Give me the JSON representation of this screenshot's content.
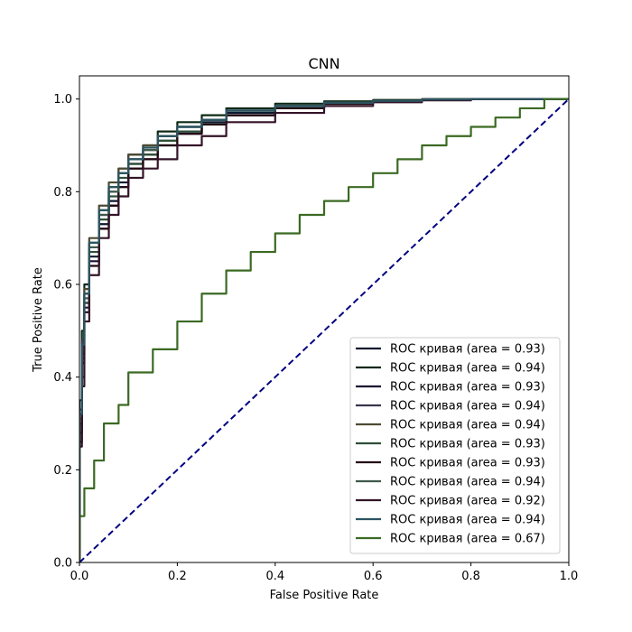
{
  "chart_data": {
    "type": "line",
    "title": "CNN",
    "xlabel": "False Positive Rate",
    "ylabel": "True Positive Rate",
    "xlim": [
      0.0,
      1.0
    ],
    "ylim": [
      0.0,
      1.05
    ],
    "xticks": [
      "0.0",
      "0.2",
      "0.4",
      "0.6",
      "0.8",
      "1.0"
    ],
    "yticks": [
      "0.0",
      "0.2",
      "0.4",
      "0.6",
      "0.8",
      "1.0"
    ],
    "grid": false,
    "legend_position": "lower-right",
    "diagonal": {
      "x": [
        0,
        1
      ],
      "y": [
        0,
        1
      ],
      "color": "#000080",
      "style": "dashed"
    },
    "series": [
      {
        "name": "ROC кривая (area = 0.93)",
        "color": "#0b1a2e",
        "x": [
          0,
          0.005,
          0.01,
          0.02,
          0.04,
          0.06,
          0.08,
          0.1,
          0.13,
          0.16,
          0.2,
          0.25,
          0.3,
          0.4,
          0.5,
          0.6,
          0.7,
          0.8,
          0.9,
          1.0
        ],
        "y": [
          0,
          0.3,
          0.45,
          0.56,
          0.66,
          0.73,
          0.78,
          0.82,
          0.86,
          0.88,
          0.91,
          0.93,
          0.95,
          0.97,
          0.98,
          0.99,
          0.995,
          0.998,
          1.0,
          1.0
        ]
      },
      {
        "name": "ROC кривая (area = 0.94)",
        "color": "#0e2a16",
        "x": [
          0,
          0.005,
          0.01,
          0.02,
          0.04,
          0.06,
          0.08,
          0.1,
          0.13,
          0.16,
          0.2,
          0.25,
          0.3,
          0.4,
          0.5,
          0.6,
          0.7,
          0.8,
          0.9,
          1.0
        ],
        "y": [
          0,
          0.35,
          0.5,
          0.6,
          0.69,
          0.76,
          0.81,
          0.85,
          0.88,
          0.9,
          0.93,
          0.95,
          0.965,
          0.98,
          0.99,
          0.995,
          0.998,
          1.0,
          1.0,
          1.0
        ]
      },
      {
        "name": "ROC кривая (area = 0.93)",
        "color": "#1c0f33",
        "x": [
          0,
          0.005,
          0.01,
          0.02,
          0.04,
          0.06,
          0.08,
          0.1,
          0.13,
          0.16,
          0.2,
          0.25,
          0.3,
          0.4,
          0.5,
          0.6,
          0.7,
          0.8,
          0.9,
          1.0
        ],
        "y": [
          0,
          0.28,
          0.43,
          0.55,
          0.65,
          0.72,
          0.77,
          0.81,
          0.85,
          0.87,
          0.9,
          0.925,
          0.945,
          0.965,
          0.98,
          0.99,
          0.995,
          0.998,
          1.0,
          1.0
        ]
      },
      {
        "name": "ROC кривая (area = 0.94)",
        "color": "#3a3650",
        "x": [
          0,
          0.005,
          0.01,
          0.02,
          0.04,
          0.06,
          0.08,
          0.1,
          0.13,
          0.16,
          0.2,
          0.25,
          0.3,
          0.4,
          0.5,
          0.6,
          0.7,
          0.8,
          0.9,
          1.0
        ],
        "y": [
          0,
          0.33,
          0.48,
          0.58,
          0.68,
          0.75,
          0.8,
          0.84,
          0.87,
          0.89,
          0.92,
          0.94,
          0.955,
          0.975,
          0.985,
          0.992,
          0.996,
          0.999,
          1.0,
          1.0
        ]
      },
      {
        "name": "ROC кривая (area = 0.94)",
        "color": "#4d4a32",
        "x": [
          0,
          0.005,
          0.01,
          0.02,
          0.04,
          0.06,
          0.08,
          0.1,
          0.13,
          0.16,
          0.2,
          0.25,
          0.3,
          0.4,
          0.5,
          0.6,
          0.7,
          0.8,
          0.9,
          1.0
        ],
        "y": [
          0,
          0.32,
          0.47,
          0.59,
          0.7,
          0.77,
          0.82,
          0.85,
          0.88,
          0.9,
          0.92,
          0.94,
          0.955,
          0.975,
          0.985,
          0.992,
          0.996,
          0.999,
          1.0,
          1.0
        ]
      },
      {
        "name": "ROC кривая (area = 0.93)",
        "color": "#2d4f38",
        "x": [
          0,
          0.005,
          0.01,
          0.02,
          0.04,
          0.06,
          0.08,
          0.1,
          0.13,
          0.16,
          0.2,
          0.25,
          0.3,
          0.4,
          0.5,
          0.6,
          0.7,
          0.8,
          0.9,
          1.0
        ],
        "y": [
          0,
          0.3,
          0.44,
          0.56,
          0.67,
          0.74,
          0.79,
          0.83,
          0.86,
          0.88,
          0.91,
          0.93,
          0.945,
          0.965,
          0.98,
          0.99,
          0.995,
          0.998,
          1.0,
          1.0
        ]
      },
      {
        "name": "ROC кривая (area = 0.93)",
        "color": "#220810",
        "x": [
          0,
          0.005,
          0.01,
          0.02,
          0.04,
          0.06,
          0.08,
          0.1,
          0.13,
          0.16,
          0.2,
          0.25,
          0.3,
          0.4,
          0.5,
          0.6,
          0.7,
          0.8,
          0.9,
          1.0
        ],
        "y": [
          0,
          0.26,
          0.4,
          0.54,
          0.64,
          0.72,
          0.77,
          0.81,
          0.85,
          0.87,
          0.9,
          0.925,
          0.945,
          0.965,
          0.98,
          0.99,
          0.995,
          0.998,
          1.0,
          1.0
        ]
      },
      {
        "name": "ROC кривая (area = 0.94)",
        "color": "#3e5a4b",
        "x": [
          0,
          0.005,
          0.01,
          0.02,
          0.04,
          0.06,
          0.08,
          0.1,
          0.13,
          0.16,
          0.2,
          0.25,
          0.3,
          0.4,
          0.5,
          0.6,
          0.7,
          0.8,
          0.9,
          1.0
        ],
        "y": [
          0,
          0.31,
          0.46,
          0.57,
          0.68,
          0.75,
          0.8,
          0.84,
          0.87,
          0.89,
          0.92,
          0.94,
          0.955,
          0.975,
          0.985,
          0.992,
          0.996,
          0.999,
          1.0,
          1.0
        ]
      },
      {
        "name": "ROC кривая (area = 0.92)",
        "color": "#331428",
        "x": [
          0,
          0.005,
          0.01,
          0.02,
          0.04,
          0.06,
          0.08,
          0.1,
          0.13,
          0.16,
          0.2,
          0.25,
          0.3,
          0.4,
          0.5,
          0.6,
          0.7,
          0.8,
          0.9,
          1.0
        ],
        "y": [
          0,
          0.25,
          0.38,
          0.52,
          0.62,
          0.7,
          0.75,
          0.79,
          0.83,
          0.85,
          0.87,
          0.9,
          0.92,
          0.95,
          0.97,
          0.985,
          0.993,
          0.997,
          1.0,
          1.0
        ]
      },
      {
        "name": "ROC кривая (area = 0.94)",
        "color": "#2b5462",
        "x": [
          0,
          0.005,
          0.01,
          0.02,
          0.04,
          0.06,
          0.08,
          0.1,
          0.13,
          0.16,
          0.2,
          0.25,
          0.3,
          0.4,
          0.5,
          0.6,
          0.7,
          0.8,
          0.9,
          1.0
        ],
        "y": [
          0,
          0.32,
          0.47,
          0.58,
          0.69,
          0.76,
          0.81,
          0.84,
          0.87,
          0.895,
          0.92,
          0.94,
          0.955,
          0.975,
          0.985,
          0.992,
          0.996,
          0.999,
          1.0,
          1.0
        ]
      },
      {
        "name": "ROC кривая (area = 0.67)",
        "color": "#3b6a23",
        "x": [
          0,
          0.01,
          0.03,
          0.05,
          0.08,
          0.1,
          0.15,
          0.2,
          0.25,
          0.3,
          0.35,
          0.4,
          0.45,
          0.5,
          0.55,
          0.6,
          0.65,
          0.7,
          0.75,
          0.8,
          0.85,
          0.9,
          0.95,
          1.0
        ],
        "y": [
          0,
          0.1,
          0.16,
          0.22,
          0.3,
          0.34,
          0.41,
          0.46,
          0.52,
          0.58,
          0.63,
          0.67,
          0.71,
          0.75,
          0.78,
          0.81,
          0.84,
          0.87,
          0.9,
          0.92,
          0.94,
          0.96,
          0.98,
          1.0
        ]
      }
    ]
  }
}
